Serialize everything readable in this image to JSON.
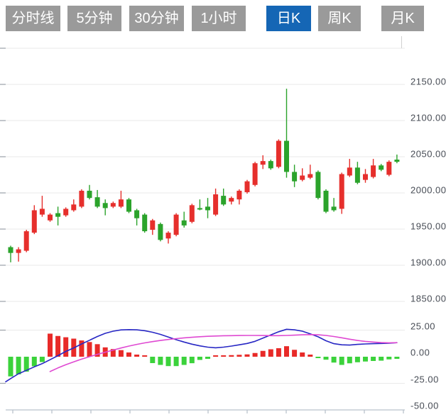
{
  "tabs": {
    "items": [
      {
        "label": "分时线",
        "active": false
      },
      {
        "label": "5分钟",
        "active": false
      },
      {
        "label": "30分钟",
        "active": false
      },
      {
        "label": "1小时",
        "active": false
      },
      {
        "label": "日K",
        "active": true
      },
      {
        "label": "周K",
        "active": false
      },
      {
        "label": "月K",
        "active": false
      }
    ]
  },
  "colors": {
    "tab_bg": "#9a9a9a",
    "tab_active_bg": "#1566b5",
    "tab_text": "#ffffff",
    "up": "#e62f2c",
    "down": "#2ba32b",
    "hist_up": "#e82a28",
    "hist_down": "#3bd23b",
    "diff_line": "#2727c4",
    "dea_line": "#df49d2",
    "grid": "#e9e9e9",
    "axis_line": "#b9c2cc",
    "left_tick": "#9aa0a8",
    "axis_text": "#474c55"
  },
  "chart_data": {
    "type": "candlestick+macd",
    "price_axis": {
      "tick_values": [
        2150,
        2100,
        2050,
        2000,
        1950,
        1900,
        1850
      ],
      "tick_labels": [
        "2150.00",
        "2100.00",
        "2050.00",
        "2000.00",
        "1950.00",
        "1900.00",
        "1850.00"
      ],
      "grid_values": [
        2200,
        2150,
        2100,
        2050,
        2000,
        1950,
        1900,
        1850
      ],
      "range": [
        1840,
        2205
      ],
      "grid": true
    },
    "macd_axis": {
      "tick_values": [
        25,
        0,
        -25,
        -50
      ],
      "tick_labels": [
        "25.00",
        "0.00",
        "-25.00",
        "-50.00"
      ],
      "grid_values": [
        25,
        -25
      ],
      "range": [
        -50,
        25
      ]
    },
    "time_axis": {
      "tick_count": 11,
      "labels_visible": false
    },
    "candles_format": [
      "open",
      "high",
      "low",
      "close"
    ],
    "candles": [
      [
        1925,
        1927,
        1904,
        1917
      ],
      [
        1917,
        1925,
        1905,
        1922
      ],
      [
        1920,
        1949,
        1918,
        1947
      ],
      [
        1945,
        1983,
        1943,
        1976
      ],
      [
        1970,
        1996,
        1967,
        1978
      ],
      [
        1962,
        1972,
        1960,
        1970
      ],
      [
        1972,
        1981,
        1955,
        1967
      ],
      [
        1969,
        1980,
        1967,
        1978
      ],
      [
        1976,
        1991,
        1974,
        1984
      ],
      [
        1981,
        2005,
        1979,
        2003
      ],
      [
        2003,
        2011,
        1991,
        1993
      ],
      [
        1994,
        2004,
        1979,
        1981
      ],
      [
        1986,
        1991,
        1969,
        1979
      ],
      [
        1981,
        1988,
        1979,
        1986
      ],
      [
        1981,
        2003,
        1979,
        1991
      ],
      [
        1991,
        1993,
        1972,
        1974
      ],
      [
        1976,
        1978,
        1955,
        1965
      ],
      [
        1970,
        1972,
        1945,
        1947
      ],
      [
        1949,
        1964,
        1942,
        1962
      ],
      [
        1957,
        1959,
        1933,
        1935
      ],
      [
        1937,
        1947,
        1930,
        1945
      ],
      [
        1942,
        1972,
        1940,
        1970
      ],
      [
        1962,
        1974,
        1952,
        1955
      ],
      [
        1960,
        1985,
        1958,
        1983
      ],
      [
        1979,
        1991,
        1976,
        1977
      ],
      [
        1981,
        1993,
        1965,
        1976
      ],
      [
        1970,
        2006,
        1968,
        1998
      ],
      [
        1996,
        2006,
        1982,
        1984
      ],
      [
        1988,
        1995,
        1984,
        1993
      ],
      [
        1991,
        2005,
        1984,
        2003
      ],
      [
        2001,
        2018,
        1999,
        2016
      ],
      [
        2011,
        2043,
        2009,
        2041
      ],
      [
        2039,
        2052,
        2033,
        2044
      ],
      [
        2044,
        2046,
        2032,
        2034
      ],
      [
        2036,
        2074,
        2034,
        2072
      ],
      [
        2072,
        2144,
        2021,
        2029
      ],
      [
        2029,
        2039,
        2008,
        2016
      ],
      [
        2018,
        2034,
        2016,
        2024
      ],
      [
        2021,
        2039,
        2019,
        2026
      ],
      [
        2029,
        2031,
        1991,
        1993
      ],
      [
        2003,
        2005,
        1972,
        1974
      ],
      [
        1981,
        1993,
        1974,
        1976
      ],
      [
        1978,
        2028,
        1971,
        2026
      ],
      [
        2024,
        2047,
        2022,
        2035
      ],
      [
        2035,
        2043,
        2012,
        2014
      ],
      [
        2018,
        2033,
        2014,
        2026
      ],
      [
        2022,
        2047,
        2020,
        2038
      ],
      [
        2038,
        2040,
        2030,
        2032
      ],
      [
        2025,
        2045,
        2023,
        2043
      ],
      [
        2046,
        2053,
        2041,
        2043
      ]
    ],
    "macd": {
      "hist": [
        -18.5,
        -16.5,
        -14,
        -9,
        -5,
        21.7,
        19.5,
        18.3,
        17,
        15.3,
        13.8,
        11.8,
        8.8,
        7.2,
        6.2,
        4,
        2,
        0.8,
        -6,
        -7.7,
        -8.8,
        -8.8,
        -7.7,
        -6.1,
        -3,
        -2,
        1,
        1.3,
        1.5,
        1.8,
        2.2,
        3.5,
        5.5,
        7,
        8,
        9.9,
        6.5,
        4,
        2,
        -1.2,
        -2.8,
        -5.5,
        -7.7,
        -6.2,
        -5.2,
        -4.5,
        -4,
        -3.7,
        -2.5,
        -2
      ],
      "diff": [
        -20.5,
        -16,
        -12.8,
        -9.5,
        -6.5,
        -2.8,
        1,
        5,
        8.3,
        12,
        15.5,
        19,
        22,
        24,
        25.2,
        25.5,
        25.3,
        24.5,
        23,
        21,
        18.5,
        16,
        13.8,
        11.8,
        10.2,
        9,
        8.4,
        9,
        10,
        11.2,
        12.5,
        14.5,
        17.5,
        20.5,
        23.5,
        25.8,
        25.3,
        24,
        21.5,
        18.7,
        15,
        12.3,
        11.2,
        10.9,
        11.6,
        12,
        12.3,
        12.5,
        12.7,
        13.2
      ],
      "dea": [
        null,
        null,
        null,
        null,
        null,
        -13.9,
        -10.5,
        -7.5,
        -4.8,
        -2.3,
        0,
        2.2,
        4.3,
        6.3,
        8.2,
        10,
        11.6,
        13,
        14.2,
        15.3,
        16.2,
        17,
        17.7,
        18.3,
        18.8,
        19.2,
        19.5,
        19.7,
        19.8,
        19.9,
        20,
        20,
        19.9,
        19.8,
        19.8,
        20,
        20.3,
        20.6,
        20.8,
        20.6,
        20,
        19,
        17.8,
        16.5,
        15.3,
        14.4,
        13.8,
        13.3,
        13.1,
        13.2
      ],
      "diff_left_edge": -23.5
    }
  }
}
